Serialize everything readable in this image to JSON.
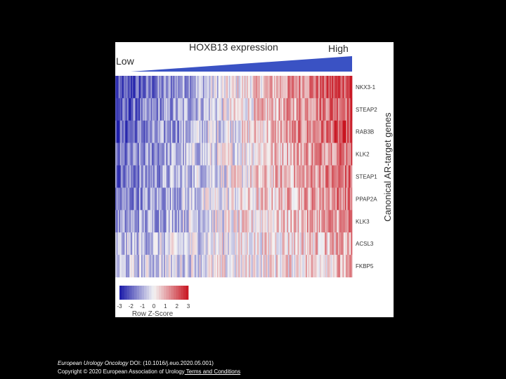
{
  "chart_data": {
    "type": "heatmap",
    "title": "HOXB13 expression",
    "gradient_low_label": "Low",
    "gradient_high_label": "High",
    "row_axis_label": "Canonical AR-target genes",
    "rows": [
      "NKX3-1",
      "STEAP2",
      "RAB3B",
      "KLK2",
      "STEAP1",
      "PPAP2A",
      "KLK3",
      "ACSL3",
      "FKBP5"
    ],
    "columns_sorted_by": "HOXB13 expression (low to high)",
    "row_trend_strength": [
      1.0,
      0.9,
      0.85,
      0.75,
      0.7,
      0.65,
      0.55,
      0.35,
      0.3
    ],
    "color_key": {
      "label": "Row Z-Score",
      "ticks": [
        "-3",
        "-2",
        "-1",
        "0",
        "1",
        "2",
        "3"
      ],
      "min": -3,
      "max": 3,
      "low_color": "#1a1aa8",
      "mid_color": "#f4f4f4",
      "high_color": "#c81420"
    },
    "gradient_color": "#3a52c4"
  },
  "caption": {
    "journal": "European Urology Oncology",
    "doi": " DOI: (10.1016/j.euo.2020.05.001)",
    "copyright": "Copyright © 2020 European Association of Urology",
    "link": " Terms and Conditions"
  }
}
